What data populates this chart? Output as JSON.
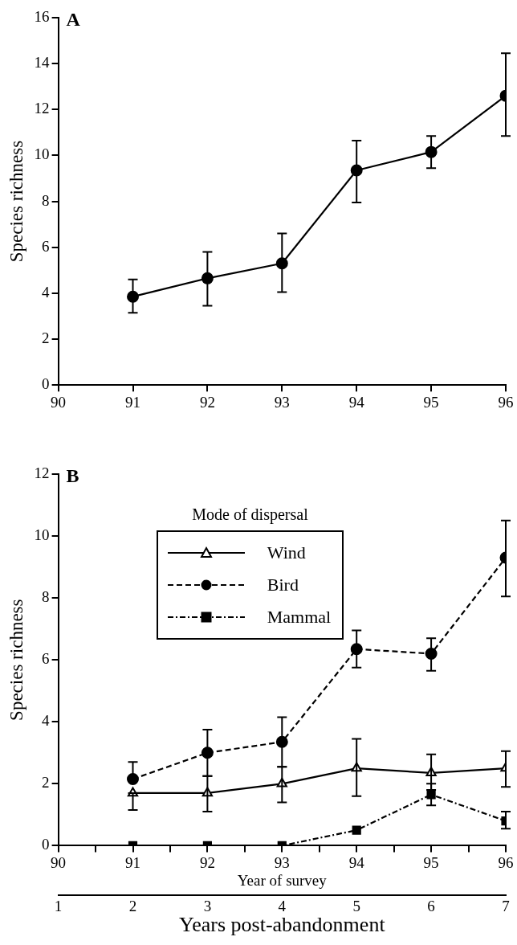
{
  "chart_data": [
    {
      "type": "line",
      "title": "A",
      "ylabel": "Species richness",
      "x": [
        91,
        92,
        93,
        94,
        95,
        96
      ],
      "xlim": [
        90,
        96
      ],
      "xticks": [
        90,
        91,
        92,
        93,
        94,
        95,
        96
      ],
      "ylim": [
        0,
        16
      ],
      "yticks": [
        0,
        2,
        4,
        6,
        8,
        10,
        12,
        14,
        16
      ],
      "grid": false,
      "legend": false,
      "marker": "circle",
      "line_style": "solid",
      "series": [
        {
          "color": "#000000",
          "values": [
            3.85,
            4.65,
            5.3,
            9.35,
            10.15,
            12.6
          ],
          "errors": [
            [
              3.15,
              4.6
            ],
            [
              3.45,
              5.8
            ],
            [
              4.05,
              6.6
            ],
            [
              7.95,
              10.65
            ],
            [
              9.45,
              10.85
            ],
            [
              10.85,
              14.45
            ]
          ]
        }
      ]
    },
    {
      "type": "line",
      "title": "B",
      "ylabel": "Species richness",
      "xlabel": "Year of survey",
      "x2label": "Years post-abandonment",
      "legend_title": "Mode of dispersal",
      "x": [
        91,
        92,
        93,
        94,
        95,
        96
      ],
      "xlim": [
        90,
        96
      ],
      "xticks": [
        90,
        {
          "value": 90.5,
          "label": null
        },
        91,
        {
          "value": 91.5,
          "label": null
        },
        92,
        {
          "value": 92.5,
          "label": null
        },
        93,
        {
          "value": 93.5,
          "label": null
        },
        94,
        {
          "value": 94.5,
          "label": null
        },
        95,
        {
          "value": 95.5,
          "label": null
        },
        96
      ],
      "x2lim": [
        1,
        7
      ],
      "x2ticks": [
        1,
        2,
        3,
        4,
        5,
        6,
        7
      ],
      "ylim": [
        0,
        12
      ],
      "yticks": [
        0,
        2,
        4,
        6,
        8,
        10,
        12
      ],
      "grid": false,
      "legend": "top",
      "series": [
        {
          "name": "Wind",
          "color": "#000000",
          "marker": "triangle",
          "line_style": "solid",
          "values": [
            1.7,
            1.7,
            2.0,
            2.5,
            2.35,
            2.5
          ],
          "errors": [
            [
              1.15,
              1.7
            ],
            [
              1.1,
              2.25
            ],
            [
              1.4,
              2.55
            ],
            [
              1.6,
              3.45
            ],
            [
              1.8,
              2.95
            ],
            [
              1.9,
              3.05
            ]
          ]
        },
        {
          "name": "Bird",
          "color": "#000000",
          "marker": "circle",
          "line_style": "dashed",
          "values": [
            2.15,
            3.0,
            3.35,
            6.35,
            6.2,
            9.3
          ],
          "errors": [
            [
              2.15,
              2.7
            ],
            [
              2.25,
              3.75
            ],
            [
              2.55,
              4.15
            ],
            [
              5.75,
              6.95
            ],
            [
              5.65,
              6.7
            ],
            [
              8.05,
              10.5
            ]
          ]
        },
        {
          "name": "Mammal",
          "color": "#000000",
          "marker": "square",
          "line_style": "dashdot",
          "values": [
            0,
            0,
            0,
            0.5,
            1.65,
            0.8
          ],
          "errors": [
            null,
            null,
            null,
            null,
            [
              1.3,
              2.0
            ],
            [
              0.55,
              1.1
            ]
          ]
        }
      ]
    }
  ]
}
